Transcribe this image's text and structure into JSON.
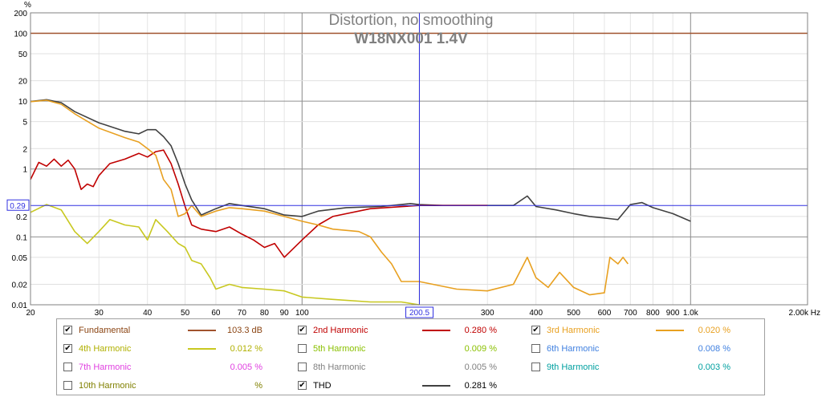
{
  "chart_data": {
    "type": "line",
    "title": "Distortion, no smoothing",
    "subtitle": "W18NX001  1.4V",
    "ylabel": "%",
    "xlabel": "Hz",
    "xscale": "log",
    "yscale": "log",
    "xlim": [
      20,
      2000
    ],
    "ylim": [
      0.01,
      200
    ],
    "x_ticks": [
      {
        "v": 20,
        "label": "20"
      },
      {
        "v": 30,
        "label": "30"
      },
      {
        "v": 40,
        "label": "40"
      },
      {
        "v": 50,
        "label": "50"
      },
      {
        "v": 60,
        "label": "60"
      },
      {
        "v": 70,
        "label": "70"
      },
      {
        "v": 80,
        "label": "80"
      },
      {
        "v": 90,
        "label": "90"
      },
      {
        "v": 100,
        "label": "100"
      },
      {
        "v": 300,
        "label": "300"
      },
      {
        "v": 400,
        "label": "400"
      },
      {
        "v": 500,
        "label": "500"
      },
      {
        "v": 600,
        "label": "600"
      },
      {
        "v": 700,
        "label": "700"
      },
      {
        "v": 800,
        "label": "800"
      },
      {
        "v": 900,
        "label": "900"
      },
      {
        "v": 1000,
        "label": "1.0k"
      },
      {
        "v": 2000,
        "label": "2.00k Hz"
      }
    ],
    "y_ticks": [
      {
        "v": 200,
        "label": "200"
      },
      {
        "v": 100,
        "label": "100"
      },
      {
        "v": 50,
        "label": "50"
      },
      {
        "v": 20,
        "label": "20"
      },
      {
        "v": 10,
        "label": "10"
      },
      {
        "v": 5,
        "label": "5"
      },
      {
        "v": 2,
        "label": "2"
      },
      {
        "v": 1,
        "label": "1"
      },
      {
        "v": 0.2,
        "label": "0.2"
      },
      {
        "v": 0.1,
        "label": "0.1"
      },
      {
        "v": 0.05,
        "label": "0.05"
      },
      {
        "v": 0.02,
        "label": "0.02"
      },
      {
        "v": 0.01,
        "label": "0.01"
      }
    ],
    "cursor": {
      "x": 200.5,
      "x_label": "200.5",
      "y": 0.29,
      "y_label": "0.29"
    },
    "grid": true,
    "series": [
      {
        "name": "Fundamental",
        "color": "#a0522d",
        "points": [
          [
            20,
            100
          ],
          [
            2000,
            100
          ]
        ]
      },
      {
        "name": "THD",
        "color": "#404040",
        "points": [
          [
            20,
            9.9
          ],
          [
            22,
            10.5
          ],
          [
            24,
            9.5
          ],
          [
            26,
            7
          ],
          [
            30,
            4.8
          ],
          [
            35,
            3.6
          ],
          [
            38,
            3.3
          ],
          [
            40,
            3.8
          ],
          [
            42,
            3.8
          ],
          [
            44,
            3
          ],
          [
            46,
            2.2
          ],
          [
            48,
            1.2
          ],
          [
            50,
            0.6
          ],
          [
            52,
            0.35
          ],
          [
            55,
            0.21
          ],
          [
            60,
            0.26
          ],
          [
            65,
            0.31
          ],
          [
            70,
            0.29
          ],
          [
            80,
            0.26
          ],
          [
            90,
            0.21
          ],
          [
            100,
            0.2
          ],
          [
            110,
            0.24
          ],
          [
            130,
            0.27
          ],
          [
            160,
            0.28
          ],
          [
            190,
            0.31
          ],
          [
            200,
            0.3
          ],
          [
            230,
            0.29
          ],
          [
            260,
            0.29
          ],
          [
            300,
            0.29
          ],
          [
            350,
            0.29
          ],
          [
            380,
            0.4
          ],
          [
            400,
            0.28
          ],
          [
            450,
            0.25
          ],
          [
            500,
            0.22
          ],
          [
            550,
            0.2
          ],
          [
            600,
            0.19
          ],
          [
            650,
            0.18
          ],
          [
            700,
            0.3
          ],
          [
            750,
            0.32
          ],
          [
            800,
            0.27
          ],
          [
            900,
            0.22
          ],
          [
            1000,
            0.17
          ]
        ]
      },
      {
        "name": "2nd Harmonic",
        "color": "#c00000",
        "points": [
          [
            20,
            0.7
          ],
          [
            21,
            1.25
          ],
          [
            22,
            1.1
          ],
          [
            23,
            1.4
          ],
          [
            24,
            1.1
          ],
          [
            25,
            1.35
          ],
          [
            26,
            1.0
          ],
          [
            27,
            0.5
          ],
          [
            28,
            0.6
          ],
          [
            29,
            0.55
          ],
          [
            30,
            0.8
          ],
          [
            32,
            1.2
          ],
          [
            35,
            1.4
          ],
          [
            38,
            1.7
          ],
          [
            40,
            1.5
          ],
          [
            42,
            1.8
          ],
          [
            44,
            1.9
          ],
          [
            46,
            1.2
          ],
          [
            48,
            0.6
          ],
          [
            50,
            0.28
          ],
          [
            52,
            0.15
          ],
          [
            55,
            0.13
          ],
          [
            60,
            0.12
          ],
          [
            65,
            0.14
          ],
          [
            70,
            0.11
          ],
          [
            75,
            0.09
          ],
          [
            80,
            0.07
          ],
          [
            85,
            0.08
          ],
          [
            90,
            0.05
          ],
          [
            100,
            0.09
          ],
          [
            110,
            0.15
          ],
          [
            120,
            0.2
          ],
          [
            150,
            0.26
          ],
          [
            200,
            0.29
          ],
          [
            300,
            0.29
          ]
        ]
      },
      {
        "name": "3rd Harmonic",
        "color": "#e8a020",
        "points": [
          [
            20,
            9.8
          ],
          [
            22,
            10.3
          ],
          [
            24,
            9
          ],
          [
            26,
            6.5
          ],
          [
            30,
            4
          ],
          [
            35,
            2.9
          ],
          [
            38,
            2.5
          ],
          [
            40,
            2.0
          ],
          [
            42,
            1.6
          ],
          [
            44,
            0.7
          ],
          [
            46,
            0.5
          ],
          [
            48,
            0.2
          ],
          [
            50,
            0.22
          ],
          [
            52,
            0.29
          ],
          [
            55,
            0.2
          ],
          [
            60,
            0.24
          ],
          [
            65,
            0.27
          ],
          [
            70,
            0.26
          ],
          [
            80,
            0.24
          ],
          [
            90,
            0.2
          ],
          [
            100,
            0.17
          ],
          [
            110,
            0.15
          ],
          [
            120,
            0.13
          ],
          [
            140,
            0.12
          ],
          [
            150,
            0.1
          ],
          [
            160,
            0.06
          ],
          [
            170,
            0.04
          ],
          [
            180,
            0.022
          ],
          [
            200,
            0.022
          ],
          [
            250,
            0.017
          ],
          [
            300,
            0.016
          ],
          [
            350,
            0.02
          ],
          [
            380,
            0.05
          ],
          [
            400,
            0.025
          ],
          [
            430,
            0.018
          ],
          [
            460,
            0.03
          ],
          [
            500,
            0.018
          ],
          [
            550,
            0.014
          ],
          [
            600,
            0.015
          ],
          [
            620,
            0.05
          ],
          [
            650,
            0.04
          ],
          [
            670,
            0.05
          ],
          [
            690,
            0.04
          ]
        ]
      },
      {
        "name": "4th Harmonic",
        "color": "#c8c820",
        "points": [
          [
            20,
            0.23
          ],
          [
            22,
            0.3
          ],
          [
            24,
            0.25
          ],
          [
            26,
            0.12
          ],
          [
            28,
            0.08
          ],
          [
            30,
            0.12
          ],
          [
            32,
            0.18
          ],
          [
            35,
            0.15
          ],
          [
            38,
            0.14
          ],
          [
            40,
            0.09
          ],
          [
            42,
            0.18
          ],
          [
            45,
            0.12
          ],
          [
            48,
            0.08
          ],
          [
            50,
            0.07
          ],
          [
            52,
            0.045
          ],
          [
            55,
            0.04
          ],
          [
            58,
            0.025
          ],
          [
            60,
            0.017
          ],
          [
            65,
            0.02
          ],
          [
            70,
            0.018
          ],
          [
            80,
            0.017
          ],
          [
            90,
            0.016
          ],
          [
            100,
            0.013
          ],
          [
            120,
            0.012
          ],
          [
            150,
            0.011
          ],
          [
            180,
            0.011
          ],
          [
            200,
            0.01
          ]
        ]
      }
    ]
  },
  "legend": [
    {
      "checked": true,
      "name": "Fundamental",
      "value": "103.3 dB",
      "color": "#a0522d",
      "text_color": "#8b4513",
      "line_color": "#a0522d"
    },
    {
      "checked": true,
      "name": "2nd Harmonic",
      "value": "0.280 %",
      "color": "#c00000",
      "text_color": "#c00000",
      "line_color": "#c00000"
    },
    {
      "checked": true,
      "name": "3rd Harmonic",
      "value": "0.020 %",
      "color": "#e8a020",
      "text_color": "#e8a020",
      "line_color": "#e8a020"
    },
    {
      "checked": true,
      "name": "4th Harmonic",
      "value": "0.012 %",
      "color": "#c8c820",
      "text_color": "#b0b000",
      "line_color": "#c8c820"
    },
    {
      "checked": false,
      "name": "5th Harmonic",
      "value": "0.009 %",
      "color": "#8ac000",
      "text_color": "#8ac000",
      "line_color": ""
    },
    {
      "checked": false,
      "name": "6th Harmonic",
      "value": "0.008 %",
      "color": "#4080e0",
      "text_color": "#4080e0",
      "line_color": ""
    },
    {
      "checked": false,
      "name": "7th Harmonic",
      "value": "0.005 %",
      "color": "#e040e0",
      "text_color": "#e040e0",
      "line_color": ""
    },
    {
      "checked": false,
      "name": "8th Harmonic",
      "value": "0.005 %",
      "color": "#808080",
      "text_color": "#808080",
      "line_color": ""
    },
    {
      "checked": false,
      "name": "9th Harmonic",
      "value": "0.003 %",
      "color": "#00b0b0",
      "text_color": "#00a0a0",
      "line_color": ""
    },
    {
      "checked": false,
      "name": "10th Harmonic",
      "value": "%",
      "color": "#808000",
      "text_color": "#808000",
      "line_color": ""
    },
    {
      "checked": true,
      "name": "THD",
      "value": "0.281 %",
      "color": "#404040",
      "text_color": "#000000",
      "line_color": "#404040"
    }
  ],
  "check_glyph": "✔"
}
